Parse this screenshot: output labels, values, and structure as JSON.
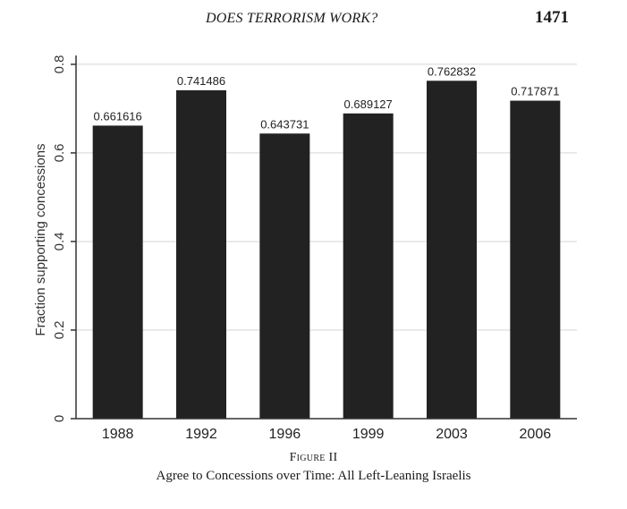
{
  "header": {
    "running_title": "DOES TERRORISM WORK?",
    "page_number": "1471"
  },
  "chart_data": {
    "type": "bar",
    "categories": [
      "1988",
      "1992",
      "1996",
      "1999",
      "2003",
      "2006"
    ],
    "values": [
      0.661616,
      0.741486,
      0.643731,
      0.689127,
      0.762832,
      0.717871
    ],
    "data_labels": [
      "0.661616",
      "0.741486",
      "0.643731",
      "0.689127",
      "0.762832",
      "0.717871"
    ],
    "title": "",
    "xlabel": "",
    "ylabel": "Fraction supporting concessions",
    "ylim": [
      0,
      0.82
    ],
    "yticks": [
      0,
      0.2,
      0.4,
      0.6,
      0.8
    ],
    "ytick_labels": [
      "0",
      "0.2",
      "0.4",
      "0.6",
      "0.8"
    ],
    "grid": "horizontal",
    "legend": "none",
    "bar_color": "#222222",
    "grid_color": "#d6d6d6",
    "axis_color": "#333333"
  },
  "caption": {
    "figure_label": "Figure II",
    "text": "Agree to Concessions over Time: All Left-Leaning Israelis"
  }
}
